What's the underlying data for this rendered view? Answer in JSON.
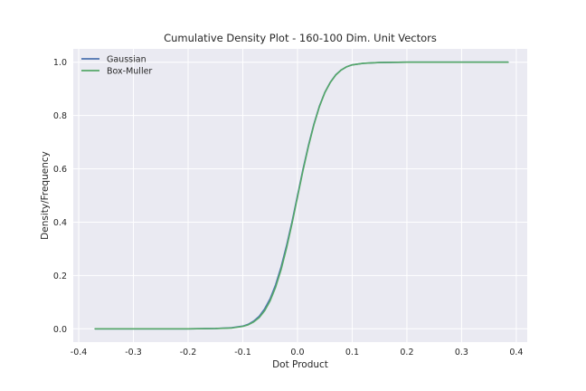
{
  "chart_data": {
    "type": "line",
    "title": "Cumulative Density Plot - 160-100 Dim. Unit Vectors",
    "xlabel": "Dot Product",
    "ylabel": "Density/Frequency",
    "xlim": [
      -0.41,
      0.42
    ],
    "ylim": [
      -0.05,
      1.05
    ],
    "xticks": [
      -0.4,
      -0.3,
      -0.2,
      -0.1,
      0.0,
      0.1,
      0.2,
      0.3,
      0.4
    ],
    "xtick_labels": [
      "-0.4",
      "-0.3",
      "-0.2",
      "-0.1",
      "0.0",
      "0.1",
      "0.2",
      "0.3",
      "0.4"
    ],
    "yticks": [
      0.0,
      0.2,
      0.4,
      0.6,
      0.8,
      1.0
    ],
    "ytick_labels": [
      "0.0",
      "0.2",
      "0.4",
      "0.6",
      "0.8",
      "1.0"
    ],
    "grid": true,
    "legend_position": "top-left",
    "series": [
      {
        "name": "Gaussian",
        "color": "#4c72b0",
        "x": [
          -0.37,
          -0.3,
          -0.2,
          -0.15,
          -0.12,
          -0.1,
          -0.09,
          -0.08,
          -0.07,
          -0.06,
          -0.05,
          -0.04,
          -0.03,
          -0.02,
          -0.01,
          0.0,
          0.01,
          0.02,
          0.03,
          0.04,
          0.05,
          0.06,
          0.07,
          0.08,
          0.09,
          0.1,
          0.12,
          0.15,
          0.2,
          0.3,
          0.385
        ],
        "y": [
          0.0,
          0.0,
          0.0,
          0.001,
          0.004,
          0.01,
          0.017,
          0.029,
          0.047,
          0.075,
          0.113,
          0.165,
          0.232,
          0.312,
          0.402,
          0.5,
          0.598,
          0.688,
          0.768,
          0.835,
          0.887,
          0.925,
          0.953,
          0.971,
          0.983,
          0.99,
          0.996,
          0.999,
          1.0,
          1.0,
          1.0
        ]
      },
      {
        "name": "Box-Muller",
        "color": "#55a868",
        "x": [
          -0.37,
          -0.3,
          -0.2,
          -0.15,
          -0.12,
          -0.1,
          -0.09,
          -0.08,
          -0.07,
          -0.06,
          -0.05,
          -0.04,
          -0.03,
          -0.02,
          -0.01,
          0.0,
          0.01,
          0.02,
          0.03,
          0.04,
          0.05,
          0.06,
          0.07,
          0.08,
          0.09,
          0.1,
          0.12,
          0.15,
          0.2,
          0.3,
          0.385
        ],
        "y": [
          0.0,
          0.0,
          0.0,
          0.001,
          0.003,
          0.009,
          0.015,
          0.026,
          0.042,
          0.068,
          0.105,
          0.156,
          0.222,
          0.303,
          0.395,
          0.494,
          0.593,
          0.684,
          0.765,
          0.833,
          0.886,
          0.924,
          0.952,
          0.971,
          0.983,
          0.99,
          0.996,
          0.999,
          1.0,
          1.0,
          1.0
        ]
      }
    ]
  },
  "colors": {
    "plot_background": "#eaeaf2",
    "grid": "#ffffff",
    "text": "#262626"
  }
}
